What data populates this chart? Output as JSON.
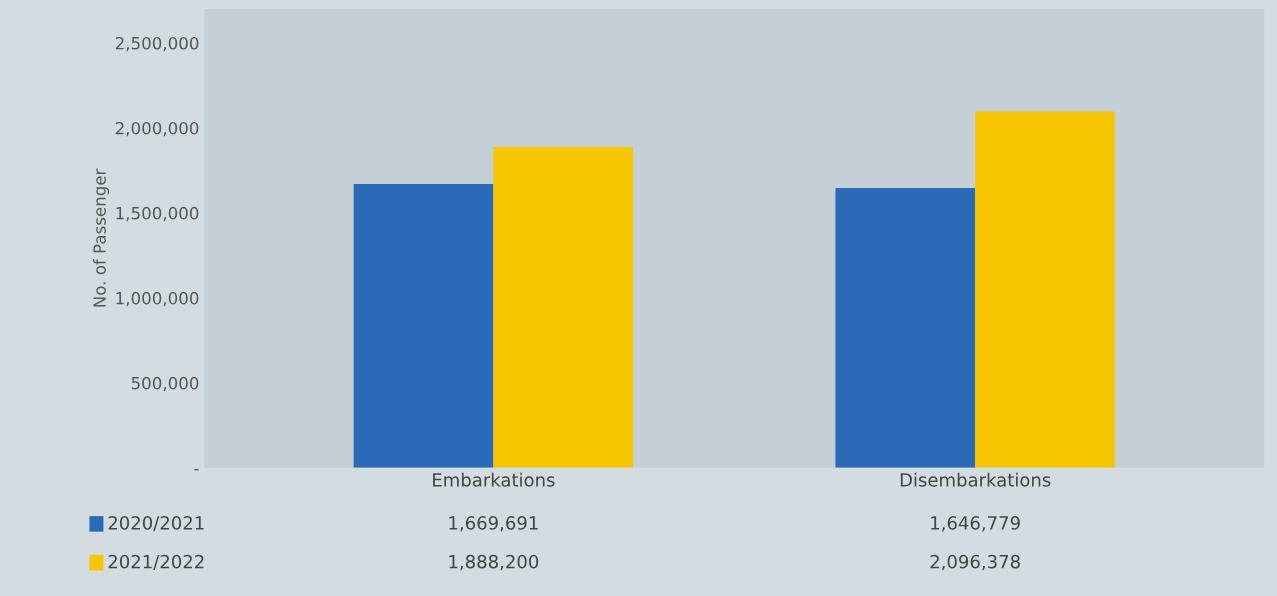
{
  "chart_data": {
    "type": "bar",
    "ylabel": "No. of Passenger",
    "categories": [
      "Embarkations",
      "Disembarkations"
    ],
    "series": [
      {
        "name": "2020/2021",
        "color": "#2a6ab8",
        "values": [
          1669691,
          1646779
        ],
        "value_labels": [
          "1,669,691",
          "1,646,779"
        ]
      },
      {
        "name": "2021/2022",
        "color": "#f7c600",
        "values": [
          1888200,
          2096378
        ],
        "value_labels": [
          "1,888,200",
          "2,096,378"
        ]
      }
    ],
    "ylim": [
      0,
      2700000
    ],
    "yticks": [
      {
        "value": 0,
        "label": "-"
      },
      {
        "value": 500000,
        "label": "500,000"
      },
      {
        "value": 1000000,
        "label": "1,000,000"
      },
      {
        "value": 1500000,
        "label": "1,500,000"
      },
      {
        "value": 2000000,
        "label": "2,000,000"
      },
      {
        "value": 2500000,
        "label": "2,500,000"
      }
    ],
    "grid": false,
    "legend": "bottom"
  }
}
